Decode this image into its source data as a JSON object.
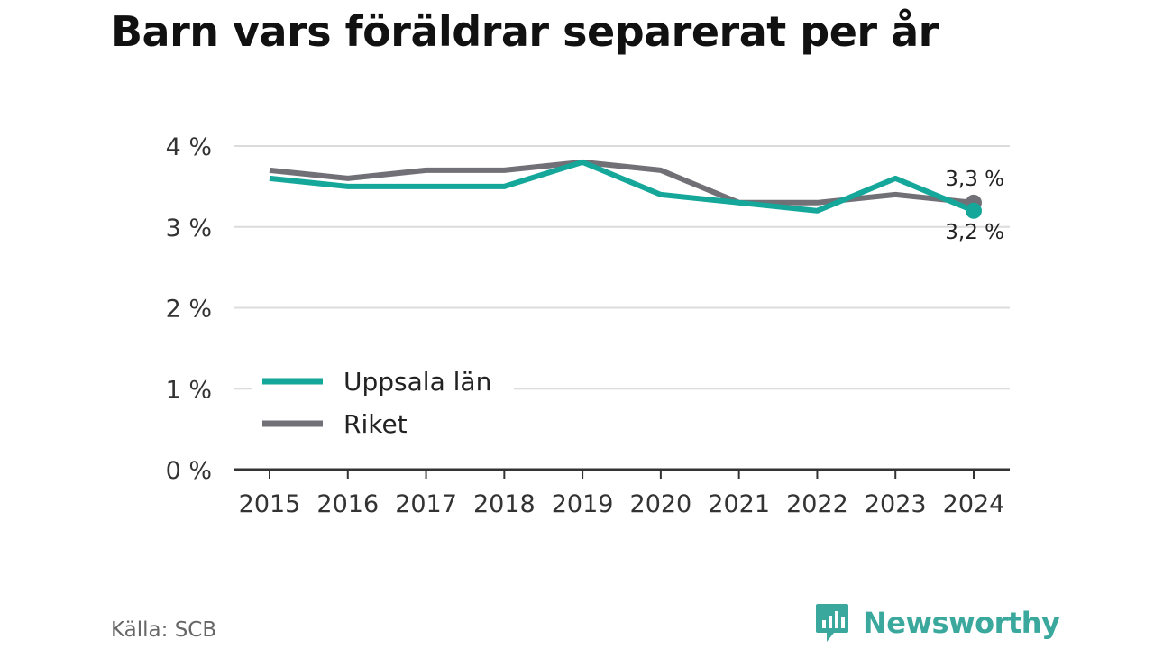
{
  "title": "Barn vars föräldrar separerat per år",
  "source": "Källa: SCB",
  "brand": {
    "name": "Newsworthy",
    "icon": "newsworthy-logo-icon"
  },
  "colors": {
    "uppsala": "#14a79a",
    "riket": "#727077",
    "grid": "#dcdcdc",
    "axis": "#333333"
  },
  "chart_data": {
    "type": "line",
    "title": "Barn vars föräldrar separerat per år",
    "x": [
      "2015",
      "2016",
      "2017",
      "2018",
      "2019",
      "2020",
      "2021",
      "2022",
      "2023",
      "2024"
    ],
    "y_ticks": [
      "0 %",
      "1 %",
      "2 %",
      "3 %",
      "4 %"
    ],
    "ylim": [
      0,
      4
    ],
    "grid": true,
    "legend_position": "bottom-left",
    "series": [
      {
        "name": "Uppsala län",
        "color": "#14a79a",
        "values": [
          3.6,
          3.5,
          3.5,
          3.5,
          3.8,
          3.4,
          3.3,
          3.2,
          3.6,
          3.2
        ],
        "end_label": "3,2 %"
      },
      {
        "name": "Riket",
        "color": "#727077",
        "values": [
          3.7,
          3.6,
          3.7,
          3.7,
          3.8,
          3.7,
          3.3,
          3.3,
          3.4,
          3.3
        ],
        "end_label": "3,3 %"
      }
    ]
  }
}
